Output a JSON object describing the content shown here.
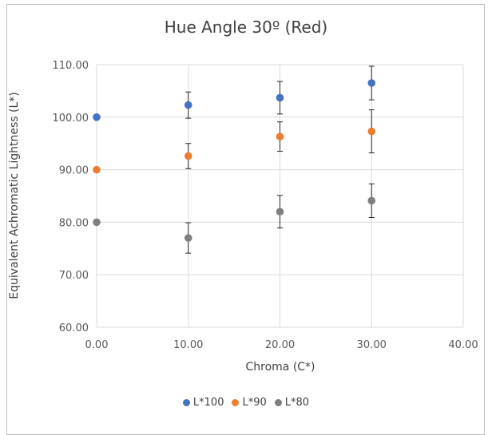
{
  "chart_data": {
    "type": "scatter",
    "title": "Hue Angle 30º (Red)",
    "xlabel": "Chroma (C*)",
    "ylabel": "Equivalent Achromatic Lightness (L*)",
    "xlim": [
      0,
      40
    ],
    "ylim": [
      60,
      110
    ],
    "x_ticks": [
      "0.00",
      "10.00",
      "20.00",
      "30.00",
      "40.00"
    ],
    "y_ticks": [
      "60.00",
      "70.00",
      "80.00",
      "90.00",
      "100.00",
      "110.00"
    ],
    "grid": true,
    "legend_position": "bottom",
    "series": [
      {
        "name": "L*100",
        "color": "#4472c4",
        "points": [
          {
            "x": 0,
            "y": 100.0,
            "err": null
          },
          {
            "x": 10,
            "y": 102.3,
            "err": 2.5
          },
          {
            "x": 20,
            "y": 103.7,
            "err": 3.1
          },
          {
            "x": 30,
            "y": 106.5,
            "err": 3.2
          }
        ]
      },
      {
        "name": "L*90",
        "color": "#ed7d31",
        "points": [
          {
            "x": 0,
            "y": 90.0,
            "err": null
          },
          {
            "x": 10,
            "y": 92.6,
            "err": 2.4
          },
          {
            "x": 20,
            "y": 96.3,
            "err": 2.8
          },
          {
            "x": 30,
            "y": 97.3,
            "err": 4.1
          }
        ]
      },
      {
        "name": "L*80",
        "color": "#7f7f7f",
        "points": [
          {
            "x": 0,
            "y": 80.0,
            "err": null
          },
          {
            "x": 10,
            "y": 77.0,
            "err": 2.9
          },
          {
            "x": 20,
            "y": 82.0,
            "err": 3.1
          },
          {
            "x": 30,
            "y": 84.1,
            "err": 3.2
          }
        ]
      }
    ]
  }
}
